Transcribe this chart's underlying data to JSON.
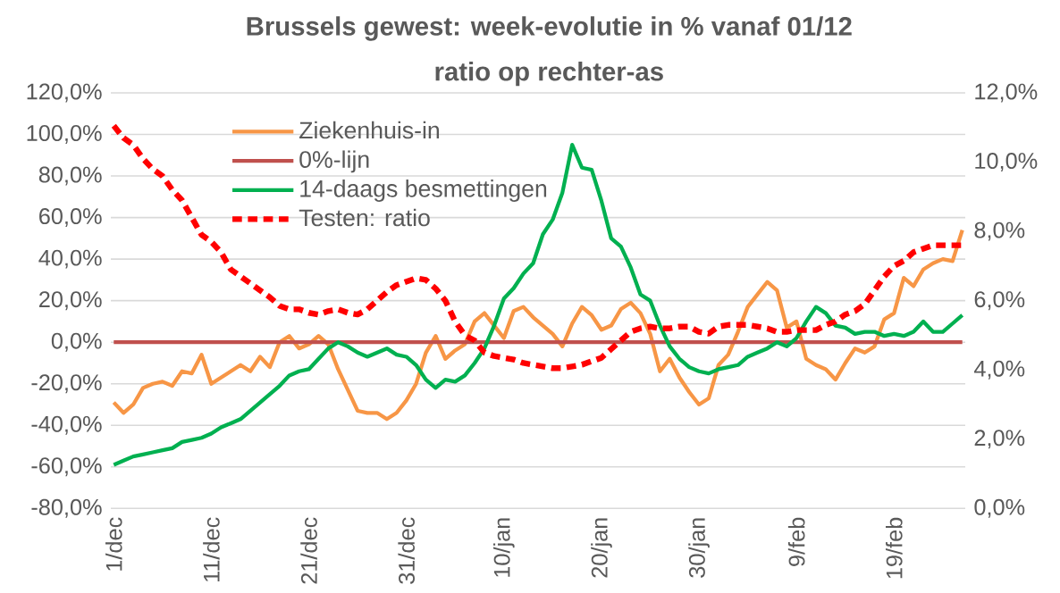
{
  "chart_data": {
    "type": "line",
    "title": "Brussels gewest: week-evolutie in %  vanaf 01/12",
    "subtitle": "ratio op rechter-as",
    "categories": [
      "1/dec",
      null,
      null,
      null,
      null,
      null,
      null,
      null,
      null,
      null,
      "11/dec",
      null,
      null,
      null,
      null,
      null,
      null,
      null,
      null,
      null,
      "21/dec",
      null,
      null,
      null,
      null,
      null,
      null,
      null,
      null,
      null,
      "31/dec",
      null,
      null,
      null,
      null,
      null,
      null,
      null,
      null,
      null,
      "10/jan",
      null,
      null,
      null,
      null,
      null,
      null,
      null,
      null,
      null,
      "20/jan",
      null,
      null,
      null,
      null,
      null,
      null,
      null,
      null,
      null,
      "30/jan",
      null,
      null,
      null,
      null,
      null,
      null,
      null,
      null,
      null,
      "9/feb",
      null,
      null,
      null,
      null,
      null,
      null,
      null,
      null,
      null,
      "19/feb",
      null,
      null,
      null,
      null,
      null,
      null,
      null
    ],
    "series": [
      {
        "name": "Ziekenhuis-in",
        "color": "#f79646",
        "values": [
          -29,
          -34,
          -30,
          -22,
          -20,
          -19,
          -21,
          -14,
          -15,
          -6,
          -20,
          -17,
          -14,
          -11,
          -14,
          -7,
          -12,
          0,
          3,
          -3,
          -1,
          3,
          -1,
          -13,
          -23,
          -33,
          -34,
          -34,
          -37,
          -34,
          -28,
          -20,
          -5,
          3,
          -8,
          -4,
          -1,
          10,
          14,
          8,
          2,
          15,
          17,
          12,
          8,
          4,
          -2,
          9,
          17,
          13,
          6,
          8,
          16,
          19,
          14,
          4,
          -14,
          -8,
          -17,
          -24,
          -30,
          -27,
          -11,
          -6,
          5,
          17,
          23,
          29,
          25,
          7,
          10,
          -8,
          -11,
          -13,
          -18,
          -10,
          -3,
          -5,
          -2,
          11,
          14,
          31,
          27,
          35,
          38,
          40,
          39,
          54
        ]
      },
      {
        "name": "0%-lijn",
        "color": "#c0504d",
        "values": [
          0,
          0,
          0,
          0,
          0,
          0,
          0,
          0,
          0,
          0,
          0,
          0,
          0,
          0,
          0,
          0,
          0,
          0,
          0,
          0,
          0,
          0,
          0,
          0,
          0,
          0,
          0,
          0,
          0,
          0,
          0,
          0,
          0,
          0,
          0,
          0,
          0,
          0,
          0,
          0,
          0,
          0,
          0,
          0,
          0,
          0,
          0,
          0,
          0,
          0,
          0,
          0,
          0,
          0,
          0,
          0,
          0,
          0,
          0,
          0,
          0,
          0,
          0,
          0,
          0,
          0,
          0,
          0,
          0,
          0,
          0,
          0,
          0,
          0,
          0,
          0,
          0,
          0,
          0,
          0,
          0,
          0,
          0,
          0,
          0,
          0,
          0,
          0
        ]
      },
      {
        "name": "14-daags besmettingen",
        "color": "#00b050",
        "values": [
          -59,
          -57,
          -55,
          -54,
          -53,
          -52,
          -51,
          -48,
          -47,
          -46,
          -44,
          -41,
          -39,
          -37,
          -33,
          -29,
          -25,
          -21,
          -16,
          -14,
          -13,
          -8,
          -3,
          0,
          -2,
          -5,
          -7,
          -5,
          -3,
          -6,
          -7,
          -11,
          -18,
          -22,
          -18,
          -19,
          -16,
          -10,
          -3,
          8,
          21,
          26,
          33,
          38,
          52,
          59,
          72,
          95,
          84,
          83,
          68,
          50,
          46,
          36,
          23,
          20,
          8,
          -2,
          -8,
          -12,
          -14,
          -15,
          -13,
          -12,
          -11,
          -7,
          -5,
          -3,
          0,
          -2,
          2,
          10,
          17,
          14,
          8,
          7,
          4,
          5,
          5,
          3,
          4,
          3,
          5,
          10,
          5,
          5,
          9,
          13
        ]
      },
      {
        "name": "Testen: ratio",
        "color": "#ff0000",
        "axis": "y2",
        "line_style": "dashed",
        "values": [
          11.05,
          10.7,
          10.5,
          10.1,
          9.8,
          9.6,
          9.2,
          8.9,
          8.4,
          7.9,
          7.7,
          7.4,
          6.9,
          6.7,
          6.5,
          6.3,
          6.1,
          5.85,
          5.75,
          5.75,
          5.65,
          5.6,
          5.7,
          5.75,
          5.65,
          5.6,
          5.75,
          6.0,
          6.25,
          6.45,
          6.55,
          6.65,
          6.6,
          6.35,
          6.0,
          5.4,
          5.0,
          4.85,
          4.5,
          4.4,
          4.35,
          4.3,
          4.2,
          4.15,
          4.1,
          4.05,
          4.05,
          4.1,
          4.15,
          4.25,
          4.35,
          4.6,
          4.85,
          5.1,
          5.2,
          5.25,
          5.2,
          5.2,
          5.25,
          5.25,
          5.1,
          5.05,
          5.25,
          5.3,
          5.3,
          5.3,
          5.25,
          5.2,
          5.1,
          5.1,
          5.15,
          5.15,
          5.15,
          5.3,
          5.4,
          5.6,
          5.7,
          5.9,
          6.3,
          6.7,
          7.0,
          7.15,
          7.4,
          7.5,
          7.6,
          7.6,
          7.6,
          7.6
        ]
      }
    ],
    "ylim": [
      -80,
      120
    ],
    "yticks": [
      {
        "value": -80,
        "label": "-80,0%"
      },
      {
        "value": -60,
        "label": "-60,0%"
      },
      {
        "value": -40,
        "label": "-40,0%"
      },
      {
        "value": -20,
        "label": "-20,0%"
      },
      {
        "value": 0,
        "label": "0,0%"
      },
      {
        "value": 20,
        "label": "20,0%"
      },
      {
        "value": 40,
        "label": "40,0%"
      },
      {
        "value": 60,
        "label": "60,0%"
      },
      {
        "value": 80,
        "label": "80,0%"
      },
      {
        "value": 100,
        "label": "100,0%"
      },
      {
        "value": 120,
        "label": "120,0%"
      }
    ],
    "y2lim": [
      0,
      12
    ],
    "y2ticks": [
      {
        "value": 0,
        "label": "0,0%"
      },
      {
        "value": 2,
        "label": "2,0%"
      },
      {
        "value": 4,
        "label": "4,0%"
      },
      {
        "value": 6,
        "label": "6,0%"
      },
      {
        "value": 8,
        "label": "8,0%"
      },
      {
        "value": 10,
        "label": "10,0%"
      },
      {
        "value": 12,
        "label": "12,0%"
      }
    ],
    "grid": "y",
    "legend": "top"
  }
}
